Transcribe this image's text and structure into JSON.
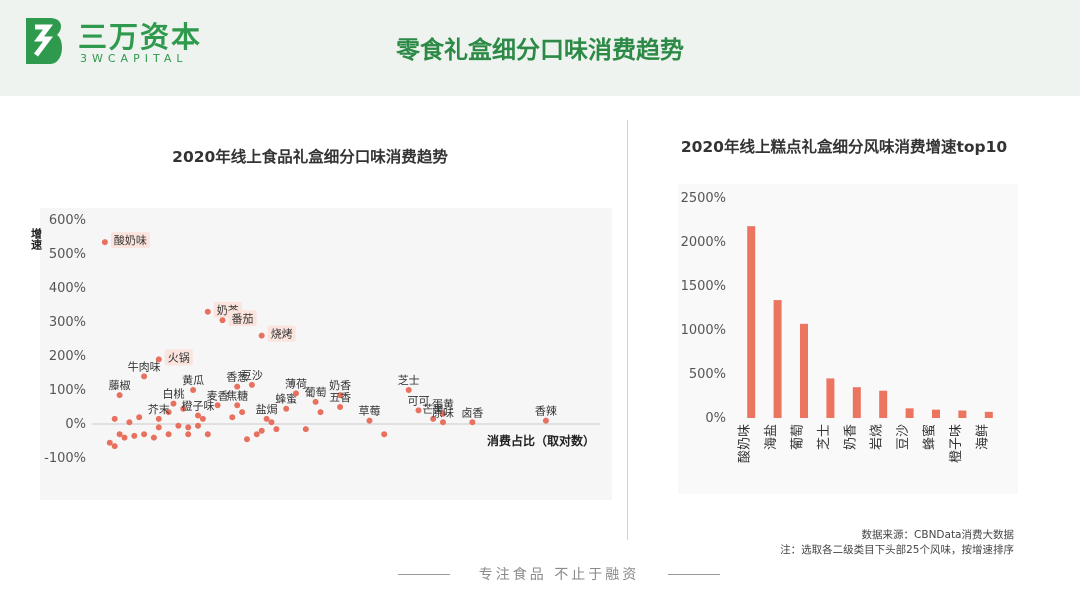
{
  "header": {
    "logo_name": "三万资本",
    "logo_sub": "3WCAPITAL",
    "title": "零食礼盒细分口味消费趋势"
  },
  "colors": {
    "brand_green": "#2f9a4d",
    "header_bg": "#eef3ef",
    "marker": "#e8705e",
    "bar": "#ec7560",
    "label_bg": "#fbe3de"
  },
  "chart_data": [
    {
      "type": "scatter",
      "title": "2020年线上食品礼盒细分口味消费趋势",
      "ylabel": "增速",
      "xlabel": "消费占比（取对数）",
      "yticks": [
        "600%",
        "500%",
        "400%",
        "300%",
        "200%",
        "100%",
        "0%",
        "-100%"
      ],
      "ylim": [
        -100,
        600
      ],
      "x_range": [
        0,
        100
      ],
      "labeled_points": [
        {
          "label": "酸奶味",
          "x": 1,
          "y": 535,
          "highlight": true
        },
        {
          "label": "奶茶",
          "x": 22,
          "y": 330,
          "highlight": true
        },
        {
          "label": "番茄",
          "x": 25,
          "y": 305,
          "highlight": true
        },
        {
          "label": "烧烤",
          "x": 33,
          "y": 260,
          "highlight": true
        },
        {
          "label": "火锅",
          "x": 12,
          "y": 190,
          "highlight": true
        },
        {
          "label": "牛肉味",
          "x": 9,
          "y": 140
        },
        {
          "label": "黄瓜",
          "x": 19,
          "y": 100
        },
        {
          "label": "藤椒",
          "x": 4,
          "y": 85
        },
        {
          "label": "香葱",
          "x": 28,
          "y": 110
        },
        {
          "label": "豆沙",
          "x": 31,
          "y": 115
        },
        {
          "label": "白桃",
          "x": 15,
          "y": 60
        },
        {
          "label": "麦香",
          "x": 24,
          "y": 55
        },
        {
          "label": "焦糖",
          "x": 28,
          "y": 55
        },
        {
          "label": "蜂蜜",
          "x": 38,
          "y": 45
        },
        {
          "label": "芥末",
          "x": 12,
          "y": 15
        },
        {
          "label": "橙子味",
          "x": 20,
          "y": 25
        },
        {
          "label": "盐焗",
          "x": 34,
          "y": 15
        },
        {
          "label": "薄荷",
          "x": 40,
          "y": 90
        },
        {
          "label": "葡萄",
          "x": 44,
          "y": 65
        },
        {
          "label": "奶香",
          "x": 49,
          "y": 85
        },
        {
          "label": "五香",
          "x": 49,
          "y": 50
        },
        {
          "label": "草莓",
          "x": 55,
          "y": 10
        },
        {
          "label": "芝士",
          "x": 63,
          "y": 100
        },
        {
          "label": "可可",
          "x": 65,
          "y": 40
        },
        {
          "label": "芒果",
          "x": 68,
          "y": 15
        },
        {
          "label": "蛋黄",
          "x": 70,
          "y": 30
        },
        {
          "label": "原味",
          "x": 70,
          "y": 5
        },
        {
          "label": "卤香",
          "x": 76,
          "y": 5
        },
        {
          "label": "香辣",
          "x": 91,
          "y": 10
        }
      ],
      "unlabeled_points": [
        {
          "x": 2,
          "y": -55
        },
        {
          "x": 3,
          "y": -65
        },
        {
          "x": 3,
          "y": 15
        },
        {
          "x": 4,
          "y": -30
        },
        {
          "x": 5,
          "y": -40
        },
        {
          "x": 6,
          "y": 5
        },
        {
          "x": 7,
          "y": -35
        },
        {
          "x": 8,
          "y": 20
        },
        {
          "x": 9,
          "y": -30
        },
        {
          "x": 11,
          "y": -40
        },
        {
          "x": 12,
          "y": -10
        },
        {
          "x": 14,
          "y": 35
        },
        {
          "x": 14,
          "y": -30
        },
        {
          "x": 16,
          "y": -5
        },
        {
          "x": 17,
          "y": 45
        },
        {
          "x": 18,
          "y": -10
        },
        {
          "x": 18,
          "y": -30
        },
        {
          "x": 20,
          "y": -5
        },
        {
          "x": 21,
          "y": 15
        },
        {
          "x": 22,
          "y": -30
        },
        {
          "x": 27,
          "y": 20
        },
        {
          "x": 29,
          "y": 35
        },
        {
          "x": 30,
          "y": -45
        },
        {
          "x": 32,
          "y": -30
        },
        {
          "x": 33,
          "y": -20
        },
        {
          "x": 35,
          "y": 5
        },
        {
          "x": 36,
          "y": -15
        },
        {
          "x": 42,
          "y": -15
        },
        {
          "x": 45,
          "y": 35
        },
        {
          "x": 58,
          "y": -30
        }
      ]
    },
    {
      "type": "bar",
      "title": "2020年线上糕点礼盒细分风味消费增速top10",
      "categories": [
        "酸奶味",
        "海盐",
        "葡萄",
        "芝士",
        "奶香",
        "岩烧",
        "豆沙",
        "蜂蜜",
        "橙子味",
        "海鲜"
      ],
      "values": [
        2180,
        1340,
        1070,
        450,
        350,
        310,
        110,
        95,
        85,
        70
      ],
      "yticks": [
        "2500%",
        "2000%",
        "1500%",
        "1000%",
        "500%",
        "0%"
      ],
      "ylim": [
        0,
        2500
      ]
    }
  ],
  "footnotes": {
    "source": "数据来源：CBNData消费大数据",
    "note": "注：选取各二级类目下头部25个风味，按增速排序"
  },
  "footer": {
    "slogan": "专注食品  不止于融资"
  }
}
